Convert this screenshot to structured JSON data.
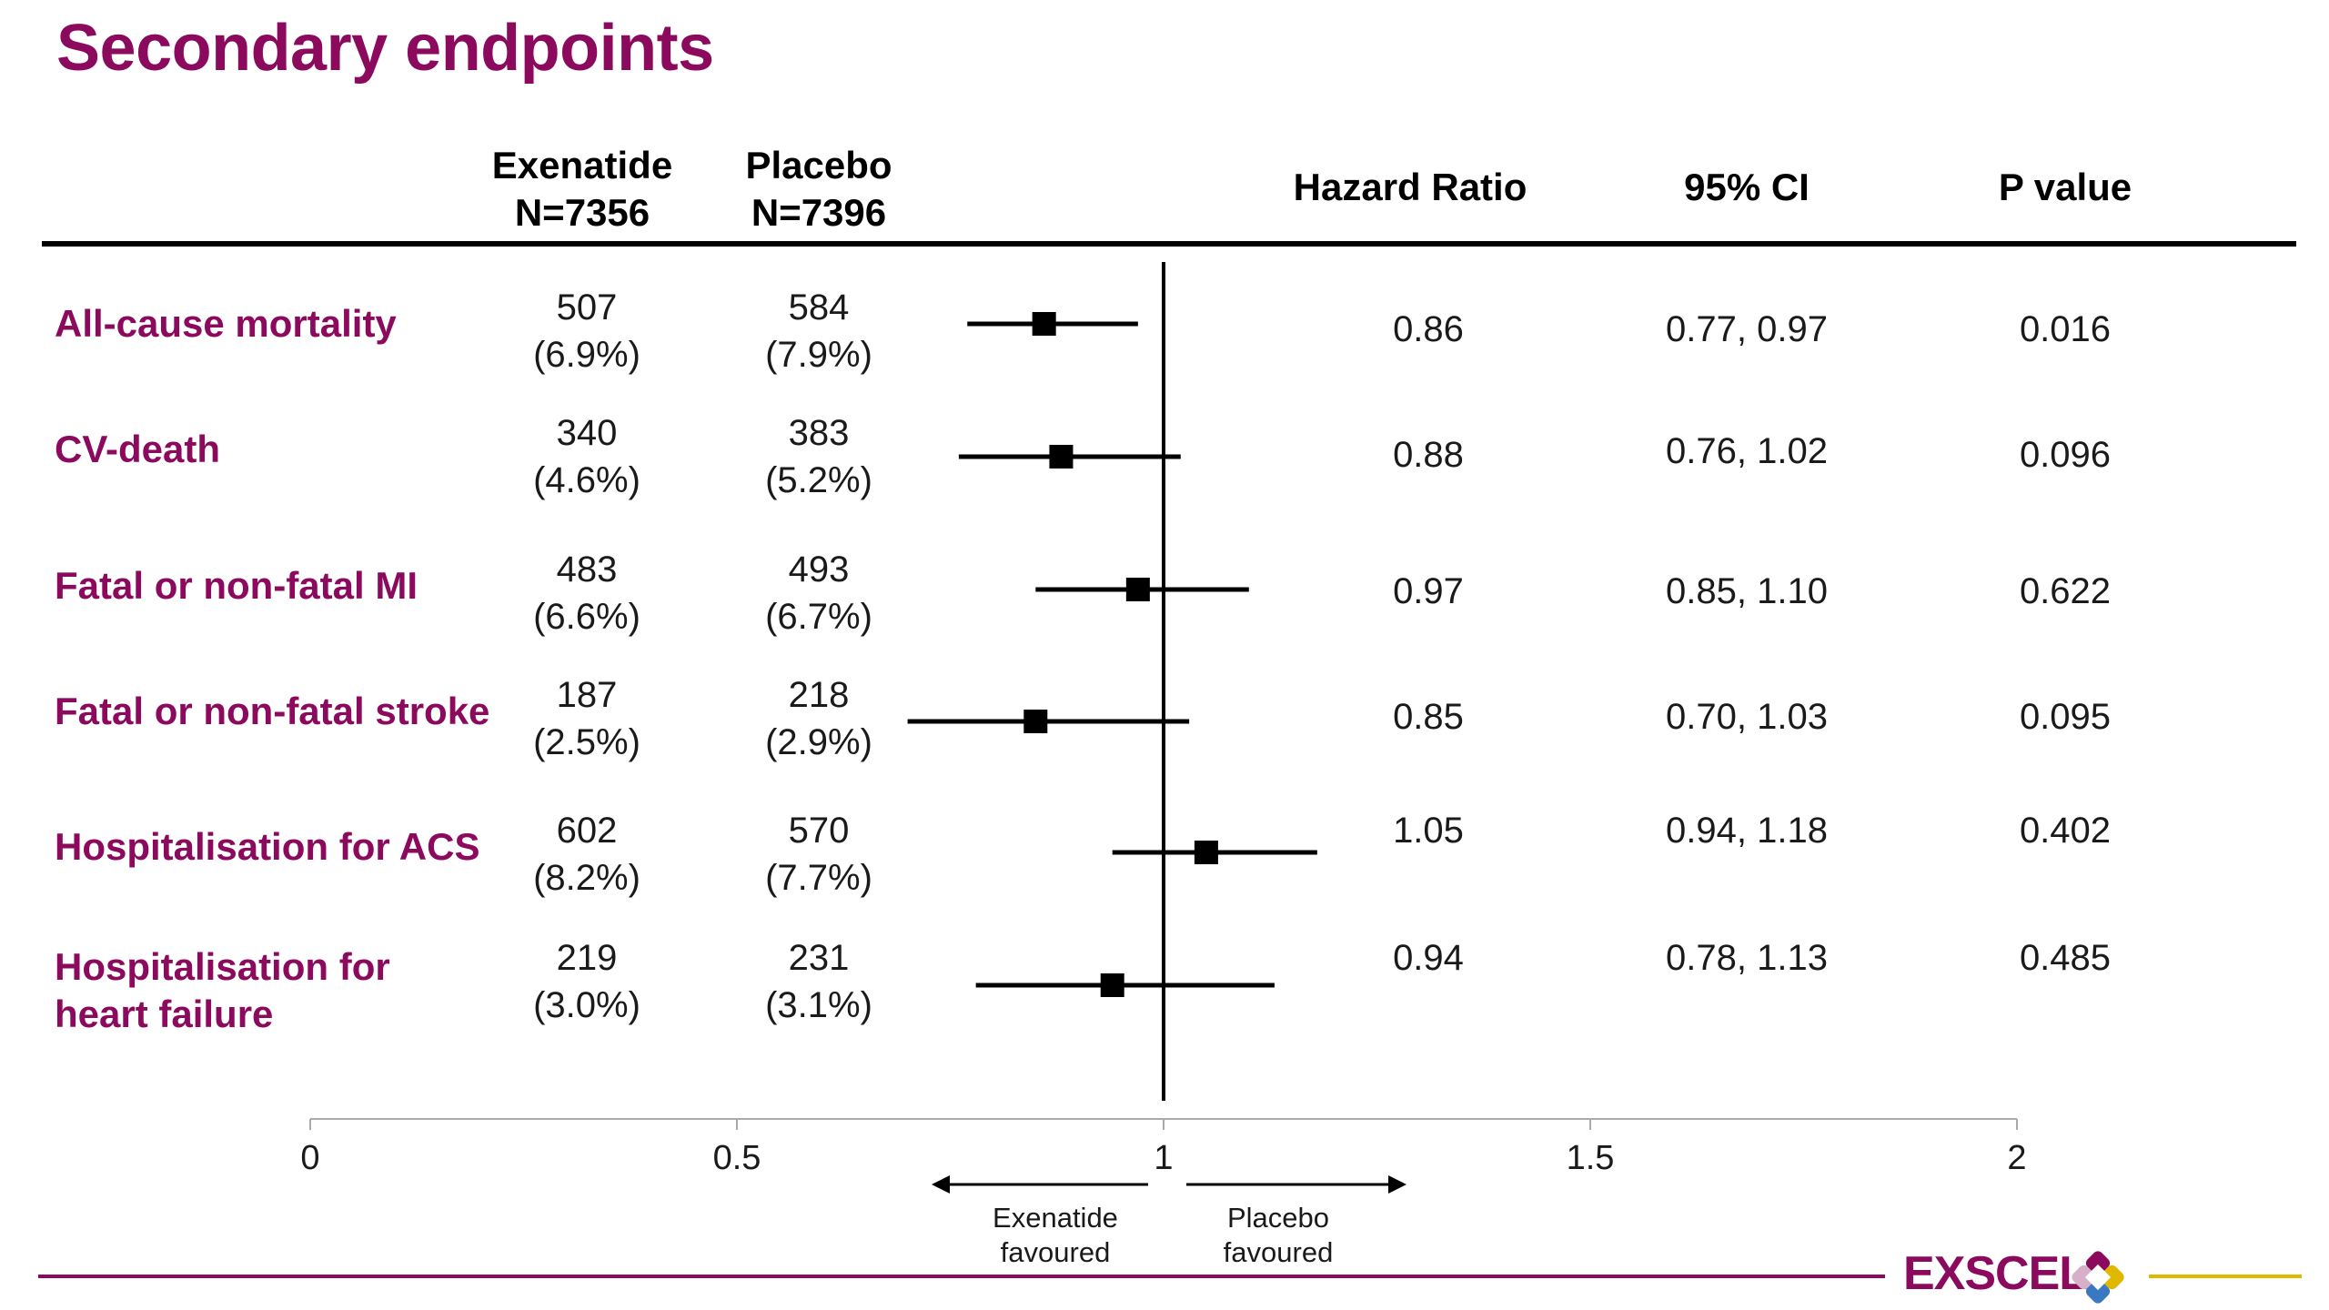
{
  "title": "Secondary endpoints",
  "headers": {
    "exenatide": [
      "Exenatide",
      "N=7356"
    ],
    "placebo": [
      "Placebo",
      "N=7396"
    ],
    "hazard_ratio": "Hazard Ratio",
    "ci": "95% CI",
    "p_value": "P value"
  },
  "rows": [
    {
      "label": [
        "All-cause mortality"
      ],
      "exenatide": [
        "507",
        "(6.9%)"
      ],
      "placebo": [
        "584",
        "(7.9%)"
      ],
      "hr": "0.86",
      "ci": "0.77, 0.97",
      "p": "0.016"
    },
    {
      "label": [
        "CV-death"
      ],
      "exenatide": [
        "340",
        "(4.6%)"
      ],
      "placebo": [
        "383",
        "(5.2%)"
      ],
      "hr": "0.88",
      "ci": "0.76, 1.02",
      "p": "0.096"
    },
    {
      "label": [
        "Fatal or non-fatal MI"
      ],
      "exenatide": [
        "483",
        "(6.6%)"
      ],
      "placebo": [
        "493",
        "(6.7%)"
      ],
      "hr": "0.97",
      "ci": "0.85, 1.10",
      "p": "0.622"
    },
    {
      "label": [
        "Fatal or non-fatal stroke"
      ],
      "exenatide": [
        "187",
        "(2.5%)"
      ],
      "placebo": [
        "218",
        "(2.9%)"
      ],
      "hr": "0.85",
      "ci": "0.70, 1.03",
      "p": "0.095"
    },
    {
      "label": [
        "Hospitalisation for ACS"
      ],
      "exenatide": [
        "602",
        "(8.2%)"
      ],
      "placebo": [
        "570",
        "(7.7%)"
      ],
      "hr": "1.05",
      "ci": "0.94, 1.18",
      "p": "0.402"
    },
    {
      "label": [
        "Hospitalisation for",
        "heart failure"
      ],
      "exenatide": [
        "219",
        "(3.0%)"
      ],
      "placebo": [
        "231",
        "(3.1%)"
      ],
      "hr": "0.94",
      "ci": "0.78, 1.13",
      "p": "0.485"
    }
  ],
  "chart_data": {
    "type": "forest",
    "xlim": [
      0,
      2
    ],
    "xticks": [
      "0",
      "0.5",
      "1",
      "1.5",
      "2"
    ],
    "reference_line": 1,
    "series": [
      {
        "hr": 0.86,
        "lo": 0.77,
        "hi": 0.97
      },
      {
        "hr": 0.88,
        "lo": 0.76,
        "hi": 1.02
      },
      {
        "hr": 0.97,
        "lo": 0.85,
        "hi": 1.1
      },
      {
        "hr": 0.85,
        "lo": 0.7,
        "hi": 1.03
      },
      {
        "hr": 1.05,
        "lo": 0.94,
        "hi": 1.18
      },
      {
        "hr": 0.94,
        "lo": 0.78,
        "hi": 1.13
      }
    ],
    "favoured_left": [
      "Exenatide",
      "favoured"
    ],
    "favoured_right": [
      "Placebo",
      "favoured"
    ]
  },
  "logo": {
    "text": "EXSCEL",
    "colors": [
      "#8b0a5e",
      "#e0b800",
      "#3a78c2",
      "#ffffff"
    ]
  },
  "colors": {
    "accent": "#8b0a5e",
    "logo_line": "#e0b800"
  }
}
